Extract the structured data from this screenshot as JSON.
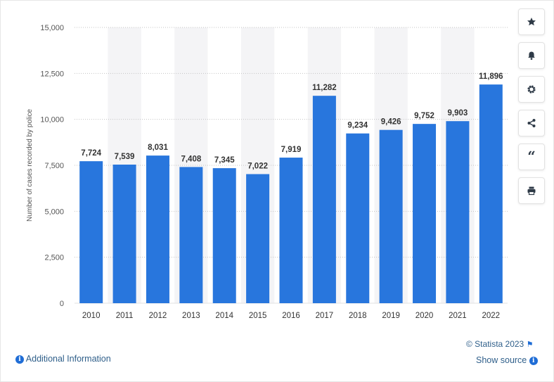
{
  "chart_data": {
    "type": "bar",
    "categories": [
      "2010",
      "2011",
      "2012",
      "2013",
      "2014",
      "2015",
      "2016",
      "2017",
      "2018",
      "2019",
      "2020",
      "2021",
      "2022"
    ],
    "values": [
      7724,
      7539,
      8031,
      7408,
      7345,
      7022,
      7919,
      11282,
      9234,
      9426,
      9752,
      9903,
      11896
    ],
    "value_labels": [
      "7,724",
      "7,539",
      "8,031",
      "7,408",
      "7,345",
      "7,022",
      "7,919",
      "11,282",
      "9,234",
      "9,426",
      "9,752",
      "9,903",
      "11,896"
    ],
    "ylabel": "Number of cases recorded by police",
    "xlabel": "",
    "title": "",
    "ylim": [
      0,
      15000
    ],
    "yticks": [
      0,
      2500,
      5000,
      7500,
      10000,
      12500,
      15000
    ],
    "ytick_labels": [
      "0",
      "2,500",
      "5,000",
      "7,500",
      "10,000",
      "12,500",
      "15,000"
    ],
    "grid": "horizontal dotted",
    "bar_color": "#2876dd"
  },
  "sidebar": {
    "buttons": [
      {
        "name": "favorite",
        "icon": "star-icon"
      },
      {
        "name": "notifications",
        "icon": "bell-icon"
      },
      {
        "name": "settings",
        "icon": "gear-icon"
      },
      {
        "name": "share",
        "icon": "share-icon"
      },
      {
        "name": "cite",
        "icon": "quote-icon",
        "glyph": "“"
      },
      {
        "name": "print",
        "icon": "print-icon"
      }
    ]
  },
  "footer": {
    "additional_info": "Additional Information",
    "copyright": "© Statista 2023",
    "show_source": "Show source",
    "info_glyph": "i"
  },
  "colors": {
    "accent": "#1f6dd6",
    "link": "#2f5f8a",
    "text_muted": "#555555"
  }
}
